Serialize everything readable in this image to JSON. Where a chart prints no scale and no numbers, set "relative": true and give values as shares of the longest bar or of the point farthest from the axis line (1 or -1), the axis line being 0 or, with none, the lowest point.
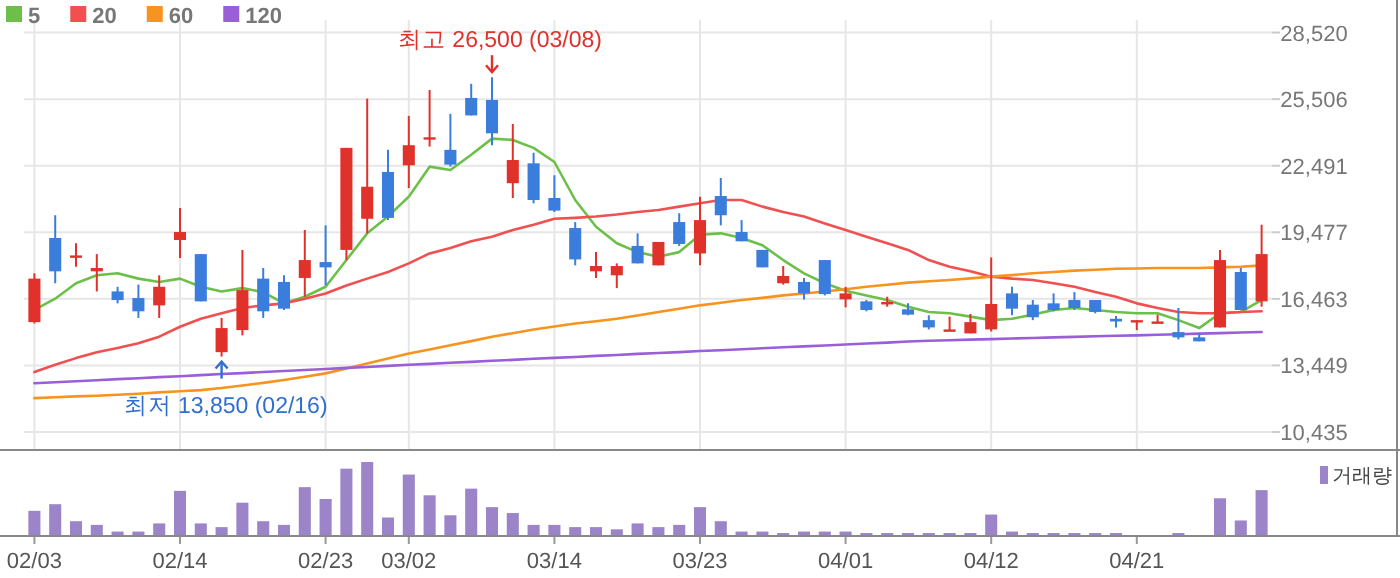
{
  "chart_data": [
    {
      "type": "candlestick",
      "categories": [
        "02/03",
        null,
        null,
        null,
        null,
        null,
        null,
        "02/14",
        null,
        null,
        null,
        null,
        null,
        null,
        "02/23",
        null,
        null,
        null,
        "03/02",
        null,
        null,
        null,
        null,
        null,
        null,
        "03/14",
        null,
        null,
        null,
        null,
        null,
        null,
        "03/23",
        null,
        null,
        null,
        null,
        null,
        null,
        "04/01",
        null,
        null,
        null,
        null,
        null,
        null,
        "04/12",
        null,
        null,
        null,
        null,
        null,
        null,
        "04/21",
        null,
        null,
        null,
        null,
        null,
        null
      ],
      "ohlc": [
        [
          15410,
          17620,
          15350,
          17380
        ],
        [
          19220,
          20250,
          17170,
          17710
        ],
        [
          18370,
          18980,
          17920,
          18430
        ],
        [
          17710,
          18490,
          16800,
          17860
        ],
        [
          16800,
          17010,
          16260,
          16410
        ],
        [
          16500,
          17110,
          15600,
          15900
        ],
        [
          16170,
          17530,
          15600,
          17010
        ],
        [
          19130,
          20580,
          18310,
          19490
        ],
        [
          18490,
          18490,
          16350,
          16350
        ],
        [
          14050,
          15600,
          13850,
          15140
        ],
        [
          15050,
          18680,
          14810,
          16860
        ],
        [
          17380,
          17860,
          15600,
          15900
        ],
        [
          17230,
          17530,
          15960,
          16020
        ],
        [
          17410,
          19580,
          16560,
          18220
        ],
        [
          18130,
          19790,
          17070,
          17890
        ],
        [
          18680,
          23300,
          18220,
          23300
        ],
        [
          20090,
          25530,
          19430,
          21540
        ],
        [
          22210,
          23210,
          20030,
          20130
        ],
        [
          22510,
          24750,
          21480,
          23420
        ],
        [
          23720,
          25920,
          23360,
          23780
        ],
        [
          23210,
          24840,
          22450,
          22540
        ],
        [
          25560,
          26200,
          24770,
          24770
        ],
        [
          25470,
          26500,
          23420,
          23960
        ],
        [
          21700,
          24380,
          21030,
          22750
        ],
        [
          22600,
          23080,
          20790,
          20940
        ],
        [
          21030,
          22060,
          20400,
          20460
        ],
        [
          19670,
          19940,
          17980,
          18250
        ],
        [
          17710,
          18580,
          17410,
          17950
        ],
        [
          17530,
          18070,
          16950,
          17950
        ],
        [
          18860,
          19430,
          18070,
          18070
        ],
        [
          17980,
          19040,
          17980,
          19040
        ],
        [
          19940,
          20340,
          18860,
          18950
        ],
        [
          18520,
          21090,
          17980,
          20030
        ],
        [
          21120,
          21940,
          19790,
          20250
        ],
        [
          19490,
          20030,
          19070,
          19070
        ],
        [
          18680,
          18680,
          17890,
          17890
        ],
        [
          17170,
          17950,
          17110,
          17500
        ],
        [
          17230,
          17410,
          16440,
          16710
        ],
        [
          18220,
          18220,
          16620,
          16680
        ],
        [
          16440,
          17010,
          16080,
          16710
        ],
        [
          16350,
          16410,
          15900,
          15960
        ],
        [
          16260,
          16560,
          16110,
          16320
        ],
        [
          15990,
          16260,
          15720,
          15750
        ],
        [
          15500,
          15720,
          15080,
          15170
        ],
        [
          15020,
          15660,
          15020,
          15080
        ],
        [
          14900,
          15780,
          14900,
          15410
        ],
        [
          15080,
          18340,
          14990,
          16230
        ],
        [
          16710,
          17010,
          15720,
          16020
        ],
        [
          16200,
          16410,
          15500,
          15630
        ],
        [
          16260,
          16710,
          15900,
          15960
        ],
        [
          16410,
          16770,
          15960,
          16050
        ],
        [
          16410,
          16410,
          15810,
          15870
        ],
        [
          15560,
          15690,
          15170,
          15440
        ],
        [
          15440,
          15500,
          15050,
          15500
        ],
        [
          15380,
          15750,
          15350,
          15440
        ],
        [
          14960,
          16050,
          14630,
          14720
        ],
        [
          14720,
          14900,
          14540,
          14540
        ],
        [
          15170,
          18680,
          15170,
          18220
        ],
        [
          17680,
          17860,
          15960,
          15960
        ],
        [
          16350,
          19820,
          16110,
          18490
        ]
      ],
      "colors": [
        "#e0312b",
        "#3b7ddd",
        "#e0312b",
        "#e0312b",
        "#3b7ddd",
        "#3b7ddd",
        "#e0312b",
        "#e0312b",
        "#3b7ddd",
        "#e0312b",
        "#e0312b",
        "#3b7ddd",
        "#3b7ddd",
        "#e0312b",
        "#3b7ddd",
        "#e0312b",
        "#e0312b",
        "#3b7ddd",
        "#e0312b",
        "#e0312b",
        "#3b7ddd",
        "#3b7ddd",
        "#3b7ddd",
        "#e0312b",
        "#3b7ddd",
        "#3b7ddd",
        "#3b7ddd",
        "#e0312b",
        "#e0312b",
        "#3b7ddd",
        "#e0312b",
        "#3b7ddd",
        "#e0312b",
        "#3b7ddd",
        "#3b7ddd",
        "#3b7ddd",
        "#e0312b",
        "#3b7ddd",
        "#3b7ddd",
        "#e0312b",
        "#3b7ddd",
        "#e0312b",
        "#3b7ddd",
        "#3b7ddd",
        "#e0312b",
        "#e0312b",
        "#e0312b",
        "#3b7ddd",
        "#3b7ddd",
        "#3b7ddd",
        "#3b7ddd",
        "#3b7ddd",
        "#3b7ddd",
        "#e0312b",
        "#e0312b",
        "#3b7ddd",
        "#3b7ddd",
        "#e0312b",
        "#3b7ddd",
        "#e0312b"
      ],
      "series": [
        {
          "name": "5",
          "type": "line",
          "color": "#6cc04a",
          "values": [
            15960,
            16470,
            17170,
            17530,
            17620,
            17380,
            17230,
            17380,
            17010,
            16800,
            16950,
            16770,
            16260,
            16560,
            17010,
            18220,
            19430,
            20190,
            21090,
            22450,
            22300,
            22990,
            23720,
            23660,
            23300,
            22660,
            20940,
            19730,
            18980,
            18580,
            18370,
            18580,
            19370,
            19430,
            19220,
            18890,
            18220,
            17620,
            17170,
            16830,
            16620,
            16410,
            16110,
            15870,
            15810,
            15660,
            15500,
            15560,
            15750,
            15960,
            16050,
            15960,
            15870,
            15810,
            15810,
            15500,
            15140,
            15810,
            15870,
            16410
          ]
        },
        {
          "name": "20",
          "type": "line",
          "color": "#f05050",
          "values": [
            13150,
            13480,
            13780,
            14050,
            14240,
            14450,
            14750,
            15200,
            15560,
            15810,
            16050,
            16170,
            16260,
            16470,
            16710,
            17070,
            17380,
            17680,
            18070,
            18520,
            18770,
            19070,
            19280,
            19580,
            19820,
            20090,
            20130,
            20190,
            20280,
            20400,
            20490,
            20640,
            20790,
            20940,
            20940,
            20640,
            20400,
            20190,
            19880,
            19580,
            19280,
            18980,
            18680,
            18220,
            17920,
            17710,
            17470,
            17380,
            17320,
            17170,
            17010,
            16770,
            16560,
            16260,
            16050,
            15870,
            15810,
            15810,
            15870,
            15900
          ]
        },
        {
          "name": "60",
          "type": "line",
          "color": "#f7931e",
          "values": [
            11970,
            12010,
            12050,
            12080,
            12120,
            12170,
            12230,
            12280,
            12330,
            12430,
            12540,
            12660,
            12790,
            12940,
            13090,
            13310,
            13540,
            13760,
            13990,
            14170,
            14360,
            14550,
            14750,
            14910,
            15080,
            15210,
            15350,
            15450,
            15560,
            15710,
            15870,
            16020,
            16170,
            16290,
            16410,
            16510,
            16620,
            16710,
            16800,
            16900,
            17010,
            17100,
            17200,
            17260,
            17320,
            17390,
            17470,
            17540,
            17620,
            17680,
            17740,
            17780,
            17830,
            17840,
            17860,
            17860,
            17860,
            17890,
            17920,
            17980
          ]
        },
        {
          "name": "120",
          "type": "line",
          "color": "#9a5ed8",
          "values": [
            12640,
            12690,
            12730,
            12780,
            12830,
            12870,
            12920,
            12960,
            13010,
            13060,
            13100,
            13150,
            13200,
            13240,
            13290,
            13340,
            13380,
            13430,
            13480,
            13520,
            13570,
            13610,
            13660,
            13700,
            13750,
            13790,
            13830,
            13880,
            13920,
            13970,
            14010,
            14050,
            14100,
            14140,
            14180,
            14230,
            14270,
            14310,
            14350,
            14400,
            14440,
            14480,
            14530,
            14570,
            14590,
            14620,
            14640,
            14670,
            14690,
            14720,
            14740,
            14770,
            14790,
            14810,
            14840,
            14860,
            14890,
            14910,
            14940,
            14960
          ]
        }
      ],
      "ylim": [
        9620,
        29090
      ],
      "yticks": [
        {
          "value": 28520,
          "label": "28,520"
        },
        {
          "value": 25506,
          "label": "25,506"
        },
        {
          "value": 22491,
          "label": "22,491"
        },
        {
          "value": 19477,
          "label": "19,477"
        },
        {
          "value": 16463,
          "label": "16,463"
        },
        {
          "value": 13449,
          "label": "13,449"
        },
        {
          "value": 10435,
          "label": "10,435"
        }
      ],
      "grid": true,
      "legend": "top left",
      "annotations": [
        {
          "text": "최고 26,500 (03/08)",
          "y": 26500
        },
        {
          "text": "최저 13,850 (02/16)",
          "y": 13850
        }
      ]
    },
    {
      "type": "bar",
      "categories": [
        null,
        null,
        null,
        null,
        null,
        null,
        null,
        null,
        null,
        null,
        null,
        null,
        null,
        null,
        null,
        null,
        null,
        null,
        null,
        null,
        null,
        null,
        null,
        null,
        null,
        null,
        null,
        null,
        null,
        null,
        null,
        null,
        null,
        null,
        null,
        null,
        null,
        null,
        null,
        null,
        null,
        null,
        null,
        null,
        null,
        null,
        null,
        null,
        null,
        null,
        null,
        null,
        null,
        null,
        null,
        null,
        null,
        null,
        null,
        null
      ],
      "series": [
        {
          "name": "거래량",
          "color": "#9b85c8",
          "values": [
            0.34,
            0.43,
            0.2,
            0.15,
            0.06,
            0.06,
            0.17,
            0.61,
            0.17,
            0.12,
            0.45,
            0.2,
            0.15,
            0.66,
            0.5,
            0.91,
            1,
            0.25,
            0.83,
            0.55,
            0.28,
            0.64,
            0.39,
            0.31,
            0.15,
            0.15,
            0.12,
            0.12,
            0.09,
            0.17,
            0.12,
            0.15,
            0.39,
            0.2,
            0.06,
            0.06,
            0.04,
            0.06,
            0.06,
            0.06,
            0.04,
            0.04,
            0.04,
            0.04,
            0.04,
            0.04,
            0.29,
            0.06,
            0.04,
            0.04,
            0.04,
            0.04,
            0.04,
            null,
            null,
            0.04,
            null,
            0.51,
            0.21,
            0.62
          ]
        }
      ],
      "relative": true,
      "legend": "top right"
    }
  ]
}
